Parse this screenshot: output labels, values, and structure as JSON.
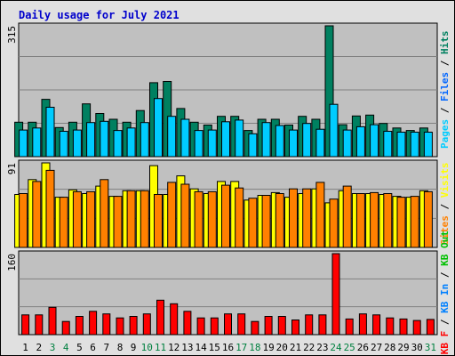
{
  "title": "Daily usage for July 2021",
  "colors": {
    "title": "#0000cc",
    "pages": "#00ccff",
    "files": "#0066ff",
    "hits": "#008060",
    "visits": "#ffff00",
    "sites": "#ff8000",
    "kb_f": "#ff0000",
    "kb_in": "#0080ff",
    "kb_out": "#00c000",
    "panel": "#c0c0c0",
    "grid": "#808080",
    "weekend": "#008040",
    "weekday": "#000000"
  },
  "chart_data": [
    {
      "type": "bar",
      "panel": "top",
      "ymax_label": "315",
      "ylim": [
        0,
        315
      ],
      "categories": [
        "1",
        "2",
        "3",
        "4",
        "5",
        "6",
        "7",
        "8",
        "9",
        "10",
        "11",
        "12",
        "13",
        "14",
        "15",
        "16",
        "17",
        "18",
        "19",
        "20",
        "21",
        "22",
        "23",
        "24",
        "25",
        "26",
        "27",
        "28",
        "29",
        "30",
        "31"
      ],
      "weekend_days": [
        "3",
        "4",
        "10",
        "11",
        "17",
        "18",
        "24",
        "25",
        "31"
      ],
      "legend": [
        {
          "key": "pages",
          "label": "Pages"
        },
        {
          "key": "files",
          "label": "Files"
        },
        {
          "key": "hits",
          "label": "Hits"
        }
      ],
      "series": [
        {
          "name": "Hits",
          "color_key": "hits",
          "values": [
            83,
            83,
            138,
            70,
            83,
            127,
            104,
            90,
            83,
            111,
            178,
            181,
            116,
            83,
            76,
            97,
            97,
            63,
            90,
            90,
            76,
            97,
            90,
            315,
            77,
            98,
            100,
            80,
            69,
            63,
            69
          ]
        },
        {
          "name": "Pages",
          "color_key": "pages",
          "values": [
            64,
            69,
            119,
            61,
            64,
            82,
            85,
            63,
            69,
            82,
            140,
            97,
            90,
            63,
            64,
            84,
            88,
            55,
            82,
            75,
            64,
            80,
            66,
            126,
            64,
            72,
            77,
            61,
            59,
            59,
            59
          ]
        }
      ]
    },
    {
      "type": "bar",
      "panel": "middle",
      "ymax_label": "91",
      "ylim": [
        0,
        91
      ],
      "categories": [
        "1",
        "2",
        "3",
        "4",
        "5",
        "6",
        "7",
        "8",
        "9",
        "10",
        "11",
        "12",
        "13",
        "14",
        "15",
        "16",
        "17",
        "18",
        "19",
        "20",
        "21",
        "22",
        "23",
        "24",
        "25",
        "26",
        "27",
        "28",
        "29",
        "30",
        "31"
      ],
      "legend": [
        {
          "key": "sites",
          "label": "Sites"
        },
        {
          "key": "visits",
          "label": "Visits"
        }
      ],
      "series": [
        {
          "name": "Visits",
          "color_key": "visits",
          "values": [
            57,
            73,
            91,
            54,
            62,
            58,
            66,
            55,
            61,
            61,
            88,
            57,
            77,
            63,
            58,
            71,
            71,
            51,
            56,
            59,
            54,
            58,
            63,
            48,
            61,
            58,
            58,
            57,
            55,
            54,
            61
          ]
        },
        {
          "name": "Sites",
          "color_key": "sites",
          "values": [
            58,
            71,
            83,
            54,
            60,
            60,
            73,
            55,
            61,
            61,
            57,
            70,
            68,
            60,
            60,
            67,
            64,
            53,
            56,
            58,
            63,
            63,
            70,
            52,
            66,
            58,
            59,
            58,
            54,
            55,
            60
          ]
        }
      ]
    },
    {
      "type": "bar",
      "panel": "bottom",
      "ymax_label": "160",
      "ylim": [
        0,
        160
      ],
      "categories": [
        "1",
        "2",
        "3",
        "4",
        "5",
        "6",
        "7",
        "8",
        "9",
        "10",
        "11",
        "12",
        "13",
        "14",
        "15",
        "16",
        "17",
        "18",
        "19",
        "20",
        "21",
        "22",
        "23",
        "24",
        "25",
        "26",
        "27",
        "28",
        "29",
        "30",
        "31"
      ],
      "legend": [
        {
          "key": "kb_f",
          "label": "KB F"
        },
        {
          "key": "kb_in",
          "label": "KB In"
        },
        {
          "key": "kb_out",
          "label": "KB Out"
        }
      ],
      "series": [
        {
          "name": "KB F",
          "color_key": "kb_f",
          "values": [
            39,
            39,
            54,
            26,
            36,
            46,
            41,
            33,
            36,
            41,
            68,
            61,
            46,
            33,
            33,
            41,
            41,
            26,
            36,
            36,
            29,
            39,
            39,
            160,
            31,
            41,
            39,
            33,
            31,
            28,
            30
          ]
        }
      ]
    }
  ]
}
